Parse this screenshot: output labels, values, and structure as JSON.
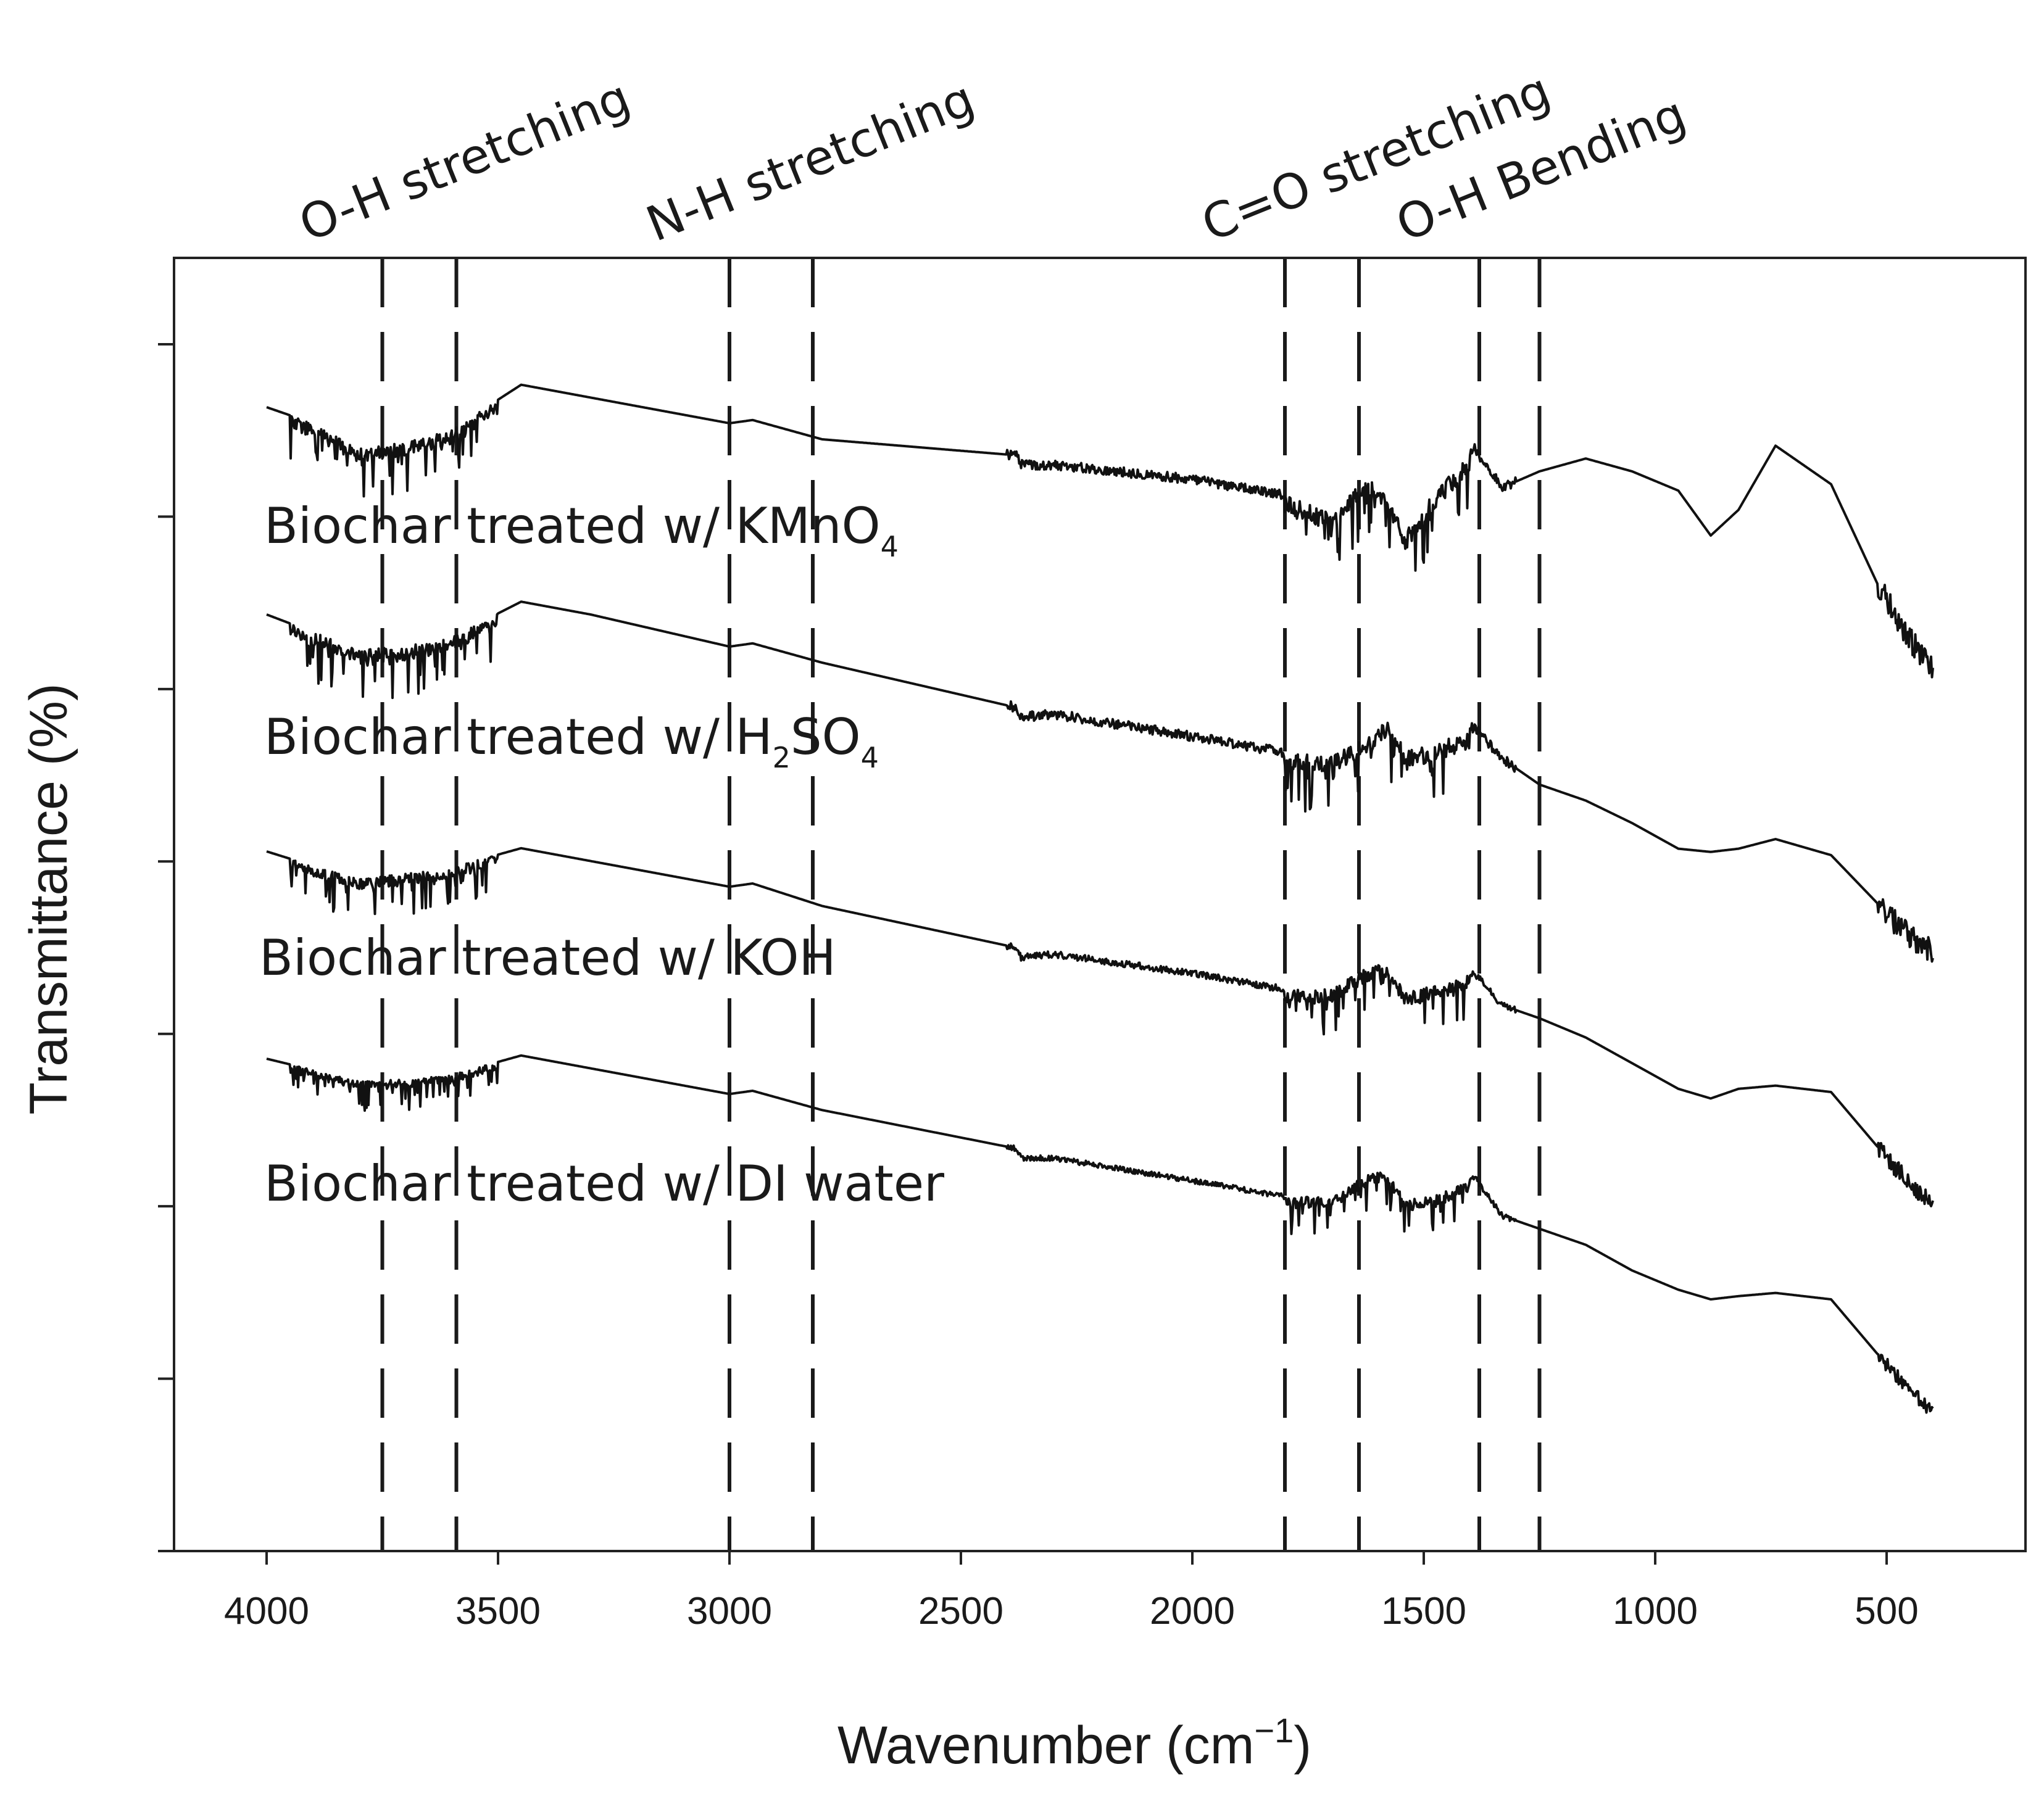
{
  "chart_data": {
    "type": "line",
    "title": "",
    "xlabel": "Wavenumber (cm",
    "xlabel_sup": "−1",
    "xlabel_close": ")",
    "ylabel": "Transmittance (%)",
    "xlim": [
      4200,
      200
    ],
    "x_ticks": [
      4000,
      3500,
      3000,
      2500,
      2000,
      1500,
      1000,
      500
    ],
    "x_tick_labels": [
      "4000",
      "3500",
      "3000",
      "2500",
      "2000",
      "1500",
      "1000",
      "500"
    ],
    "y_tick_count": 8,
    "x_range": [
      4000,
      400
    ],
    "bands": [
      {
        "label": "O-H stretching",
        "range": [
          3750,
          3590
        ]
      },
      {
        "label": "N-H stretching",
        "range": [
          3000,
          2820
        ]
      },
      {
        "label": "C=O stretching",
        "range": [
          1800,
          1640
        ]
      },
      {
        "label": "O-H Bending",
        "range": [
          1380,
          1250
        ]
      }
    ],
    "series": [
      {
        "name": "Biochar treated w/ KMnO4",
        "label_text": "Biochar treated w/ KMnO",
        "label_sub": "4",
        "label_tail": "",
        "offset": 0,
        "noise": 1.0,
        "oh_dip": 1.0,
        "co_dip": 1.0,
        "profile": [
          [
            4000,
            0.0
          ],
          [
            3900,
            1.0
          ],
          [
            3800,
            2.6
          ],
          [
            3700,
            2.2
          ],
          [
            3600,
            1.4
          ],
          [
            3450,
            -1.4
          ],
          [
            3300,
            -0.6
          ],
          [
            3000,
            1.0
          ],
          [
            2950,
            0.8
          ],
          [
            2800,
            2.0
          ],
          [
            2380,
            3.0
          ],
          [
            2370,
            3.6
          ],
          [
            2300,
            3.6
          ],
          [
            2000,
            4.5
          ],
          [
            1800,
            5.5
          ],
          [
            1700,
            6.6
          ],
          [
            1620,
            4.3
          ],
          [
            1580,
            5.6
          ],
          [
            1540,
            7.8
          ],
          [
            1480,
            5.4
          ],
          [
            1390,
            2.6
          ],
          [
            1330,
            5.0
          ],
          [
            1250,
            4.0
          ],
          [
            1150,
            3.2
          ],
          [
            1050,
            4.0
          ],
          [
            950,
            5.2
          ],
          [
            880,
            8.0
          ],
          [
            820,
            6.4
          ],
          [
            740,
            2.4
          ],
          [
            620,
            4.8
          ],
          [
            520,
            11.0
          ],
          [
            460,
            14.0
          ],
          [
            400,
            16.5
          ]
        ]
      },
      {
        "name": "Biochar treated w/ H2SO4",
        "label_text": "Biochar treated w/ H",
        "label_sub": "2",
        "label_tail": "SO",
        "label_sub2": "4",
        "offset": 0,
        "noise": 1.0,
        "oh_dip": 1.0,
        "co_dip": 1.0,
        "profile": [
          [
            4000,
            0.0
          ],
          [
            3900,
            1.1
          ],
          [
            3800,
            2.2
          ],
          [
            3700,
            2.0
          ],
          [
            3600,
            1.4
          ],
          [
            3450,
            -0.8
          ],
          [
            3300,
            0.0
          ],
          [
            3000,
            2.0
          ],
          [
            2950,
            1.8
          ],
          [
            2800,
            3.0
          ],
          [
            2380,
            5.8
          ],
          [
            2370,
            6.4
          ],
          [
            2300,
            6.2
          ],
          [
            2000,
            7.6
          ],
          [
            1800,
            8.6
          ],
          [
            1700,
            8.8
          ],
          [
            1620,
            7.6
          ],
          [
            1580,
            6.6
          ],
          [
            1540,
            8.4
          ],
          [
            1480,
            8.2
          ],
          [
            1390,
            7.0
          ],
          [
            1330,
            9.0
          ],
          [
            1250,
            10.6
          ],
          [
            1150,
            11.6
          ],
          [
            1050,
            13.0
          ],
          [
            950,
            14.6
          ],
          [
            880,
            14.8
          ],
          [
            820,
            14.6
          ],
          [
            740,
            14.0
          ],
          [
            620,
            15.0
          ],
          [
            520,
            18.0
          ],
          [
            460,
            19.8
          ],
          [
            400,
            21.0
          ]
        ]
      },
      {
        "name": "Biochar treated w/ KOH",
        "label_text": "Biochar treated w/ KOH",
        "label_sub": "",
        "label_tail": "",
        "offset": 0,
        "noise": 0.7,
        "oh_dip": 0.8,
        "co_dip": 0.8,
        "profile": [
          [
            4000,
            0.0
          ],
          [
            3900,
            0.9
          ],
          [
            3800,
            1.7
          ],
          [
            3700,
            1.4
          ],
          [
            3600,
            1.0
          ],
          [
            3450,
            -0.2
          ],
          [
            3300,
            0.6
          ],
          [
            3000,
            2.2
          ],
          [
            2950,
            2.0
          ],
          [
            2800,
            3.4
          ],
          [
            2380,
            6.0
          ],
          [
            2370,
            6.6
          ],
          [
            2300,
            6.4
          ],
          [
            2000,
            7.6
          ],
          [
            1800,
            8.6
          ],
          [
            1700,
            8.6
          ],
          [
            1620,
            7.2
          ],
          [
            1580,
            7.0
          ],
          [
            1540,
            8.8
          ],
          [
            1480,
            8.4
          ],
          [
            1390,
            7.6
          ],
          [
            1330,
            9.6
          ],
          [
            1250,
            10.4
          ],
          [
            1150,
            11.6
          ],
          [
            1050,
            13.2
          ],
          [
            950,
            14.8
          ],
          [
            880,
            15.4
          ],
          [
            820,
            14.8
          ],
          [
            740,
            14.6
          ],
          [
            620,
            15.0
          ],
          [
            520,
            18.4
          ],
          [
            460,
            20.4
          ],
          [
            400,
            22.0
          ]
        ]
      },
      {
        "name": "Biochar treated w/ DI water",
        "label_text": "Biochar treated w/ DI water",
        "label_sub": "",
        "label_tail": "",
        "offset": 0,
        "noise": 0.55,
        "oh_dip": 0.6,
        "co_dip": 0.65,
        "profile": [
          [
            4000,
            0.0
          ],
          [
            3900,
            0.7
          ],
          [
            3800,
            1.4
          ],
          [
            3700,
            1.3
          ],
          [
            3600,
            1.0
          ],
          [
            3450,
            -0.2
          ],
          [
            3300,
            0.6
          ],
          [
            3000,
            2.2
          ],
          [
            2950,
            2.0
          ],
          [
            2800,
            3.2
          ],
          [
            2380,
            5.6
          ],
          [
            2370,
            6.2
          ],
          [
            2300,
            6.2
          ],
          [
            2000,
            7.6
          ],
          [
            1800,
            8.6
          ],
          [
            1700,
            8.6
          ],
          [
            1620,
            7.2
          ],
          [
            1580,
            7.0
          ],
          [
            1540,
            8.8
          ],
          [
            1480,
            8.6
          ],
          [
            1390,
            7.4
          ],
          [
            1330,
            9.8
          ],
          [
            1250,
            10.6
          ],
          [
            1150,
            11.6
          ],
          [
            1050,
            13.2
          ],
          [
            950,
            14.4
          ],
          [
            880,
            15.0
          ],
          [
            820,
            14.8
          ],
          [
            740,
            14.6
          ],
          [
            620,
            15.0
          ],
          [
            520,
            18.4
          ],
          [
            460,
            20.4
          ],
          [
            400,
            22.0
          ]
        ]
      }
    ]
  }
}
